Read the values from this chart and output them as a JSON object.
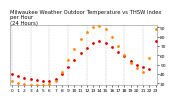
{
  "title": "Milwaukee Weather Outdoor Temperature vs THSW Index\nper Hour\n(24 Hours)",
  "background_color": "#ffffff",
  "grid_color": "#bbbbbb",
  "x_ticks": [
    0,
    1,
    2,
    3,
    4,
    5,
    6,
    7,
    8,
    9,
    10,
    11,
    12,
    13,
    14,
    15,
    16,
    17,
    18,
    19,
    20,
    21,
    22,
    23
  ],
  "temp_color": "#dd0000",
  "thsw_color": "#ff8800",
  "black_color": "#000000",
  "ylim": [
    28,
    92
  ],
  "xlim": [
    -0.3,
    23.3
  ],
  "temp_data": [
    [
      0,
      40
    ],
    [
      1,
      38
    ],
    [
      2,
      36
    ],
    [
      3,
      35
    ],
    [
      4,
      34
    ],
    [
      5,
      33
    ],
    [
      6,
      33
    ],
    [
      7,
      35
    ],
    [
      8,
      40
    ],
    [
      9,
      47
    ],
    [
      10,
      55
    ],
    [
      11,
      62
    ],
    [
      12,
      68
    ],
    [
      13,
      73
    ],
    [
      14,
      75
    ],
    [
      15,
      73
    ],
    [
      16,
      69
    ],
    [
      17,
      64
    ],
    [
      18,
      59
    ],
    [
      19,
      54
    ],
    [
      20,
      50
    ],
    [
      21,
      47
    ],
    [
      22,
      45
    ],
    [
      23,
      75
    ]
  ],
  "thsw_data": [
    [
      0,
      32
    ],
    [
      1,
      30
    ],
    [
      2,
      29
    ],
    [
      3,
      28
    ],
    [
      4,
      28
    ],
    [
      5,
      28
    ],
    [
      6,
      29
    ],
    [
      7,
      33
    ],
    [
      8,
      42
    ],
    [
      9,
      55
    ],
    [
      10,
      67
    ],
    [
      11,
      77
    ],
    [
      12,
      85
    ],
    [
      13,
      90
    ],
    [
      14,
      91
    ],
    [
      15,
      88
    ],
    [
      16,
      80
    ],
    [
      17,
      70
    ],
    [
      18,
      60
    ],
    [
      19,
      52
    ],
    [
      20,
      46
    ],
    [
      21,
      42
    ],
    [
      22,
      57
    ],
    [
      23,
      88
    ]
  ],
  "ytick_vals": [
    30,
    40,
    50,
    60,
    70,
    80,
    90
  ],
  "title_fontsize": 3.8,
  "tick_fontsize": 3.2,
  "marker_size": 1.0,
  "grid_every": 3
}
